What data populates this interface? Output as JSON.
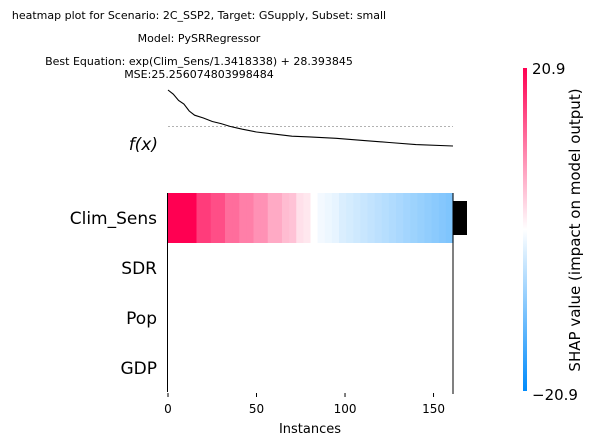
{
  "chart_data": {
    "type": "heatmap",
    "title_lines": [
      "heatmap plot for Scenario: 2C_SSP2, Target: GSupply, Subset: small",
      "Model: PySRRegressor",
      "Best Equation: exp(Clim_Sens/1.3418338) + 28.393845",
      "MSE:25.256074803998484"
    ],
    "fx_label": "f(x)",
    "xlabel": "Instances",
    "xlim": [
      0,
      161
    ],
    "xticks": [
      0,
      50,
      100,
      150
    ],
    "features": [
      "Clim_Sens",
      "SDR",
      "Pop",
      "GDP"
    ],
    "feature_importance": [
      1,
      0,
      0,
      0
    ],
    "colorbar": {
      "label": "SHAP value (impact on model output)",
      "max_label": "20.9",
      "min_label": "−20.9",
      "vmin": -20.9,
      "vmax": 20.9,
      "color_high": "#ff0052",
      "color_mid": "#ffffff",
      "color_low": "#008bfb"
    },
    "clim_sens_shap": [
      20.9,
      20.9,
      20.9,
      20.9,
      16,
      16,
      14.5,
      14.5,
      12,
      12,
      10.5,
      10.5,
      9,
      9,
      7,
      7,
      5.5,
      5,
      2.5,
      2,
      0,
      -1,
      -1.5,
      -2,
      -3,
      -3.5,
      -4,
      -4.5,
      -5,
      -5.5,
      -6,
      -6.5,
      -7,
      -7.5,
      -8,
      -8.5,
      -9,
      -9.5,
      -10,
      -10.5
    ],
    "fx_curve": [
      [
        0,
        100
      ],
      [
        3,
        94
      ],
      [
        6,
        85
      ],
      [
        9,
        80
      ],
      [
        12,
        70
      ],
      [
        15,
        64
      ],
      [
        20,
        60
      ],
      [
        25,
        55
      ],
      [
        30,
        52
      ],
      [
        35,
        48
      ],
      [
        42,
        44
      ],
      [
        50,
        40
      ],
      [
        60,
        37
      ],
      [
        70,
        34
      ],
      [
        80,
        33
      ],
      [
        95,
        31
      ],
      [
        110,
        28
      ],
      [
        125,
        25
      ],
      [
        140,
        22
      ],
      [
        161,
        20
      ]
    ],
    "fx_baseline": 48
  }
}
